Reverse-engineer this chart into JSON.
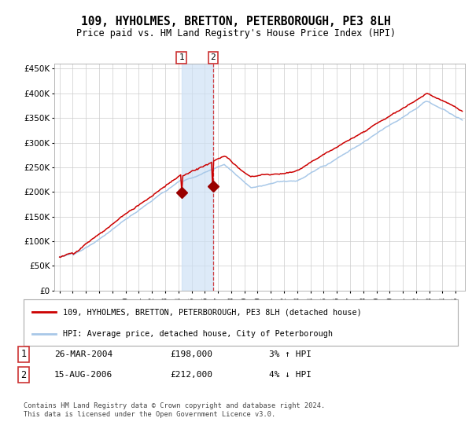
{
  "title": "109, HYHOLMES, BRETTON, PETERBOROUGH, PE3 8LH",
  "subtitle": "Price paid vs. HM Land Registry's House Price Index (HPI)",
  "legend_line1": "109, HYHOLMES, BRETTON, PETERBOROUGH, PE3 8LH (detached house)",
  "legend_line2": "HPI: Average price, detached house, City of Peterborough",
  "transaction1_date": "26-MAR-2004",
  "transaction1_price": "£198,000",
  "transaction1_hpi": "3% ↑ HPI",
  "transaction2_date": "15-AUG-2006",
  "transaction2_price": "£212,000",
  "transaction2_hpi": "4% ↓ HPI",
  "footer": "Contains HM Land Registry data © Crown copyright and database right 2024.\nThis data is licensed under the Open Government Licence v3.0.",
  "hpi_color": "#a8c8e8",
  "price_color": "#cc0000",
  "marker_color": "#990000",
  "background_color": "#ffffff",
  "grid_color": "#cccccc",
  "transaction1_x": 2004.23,
  "transaction2_x": 2006.62,
  "ylim_max": 460000,
  "ylim_min": 0,
  "xtick_start": 1995,
  "xtick_end": 2026
}
